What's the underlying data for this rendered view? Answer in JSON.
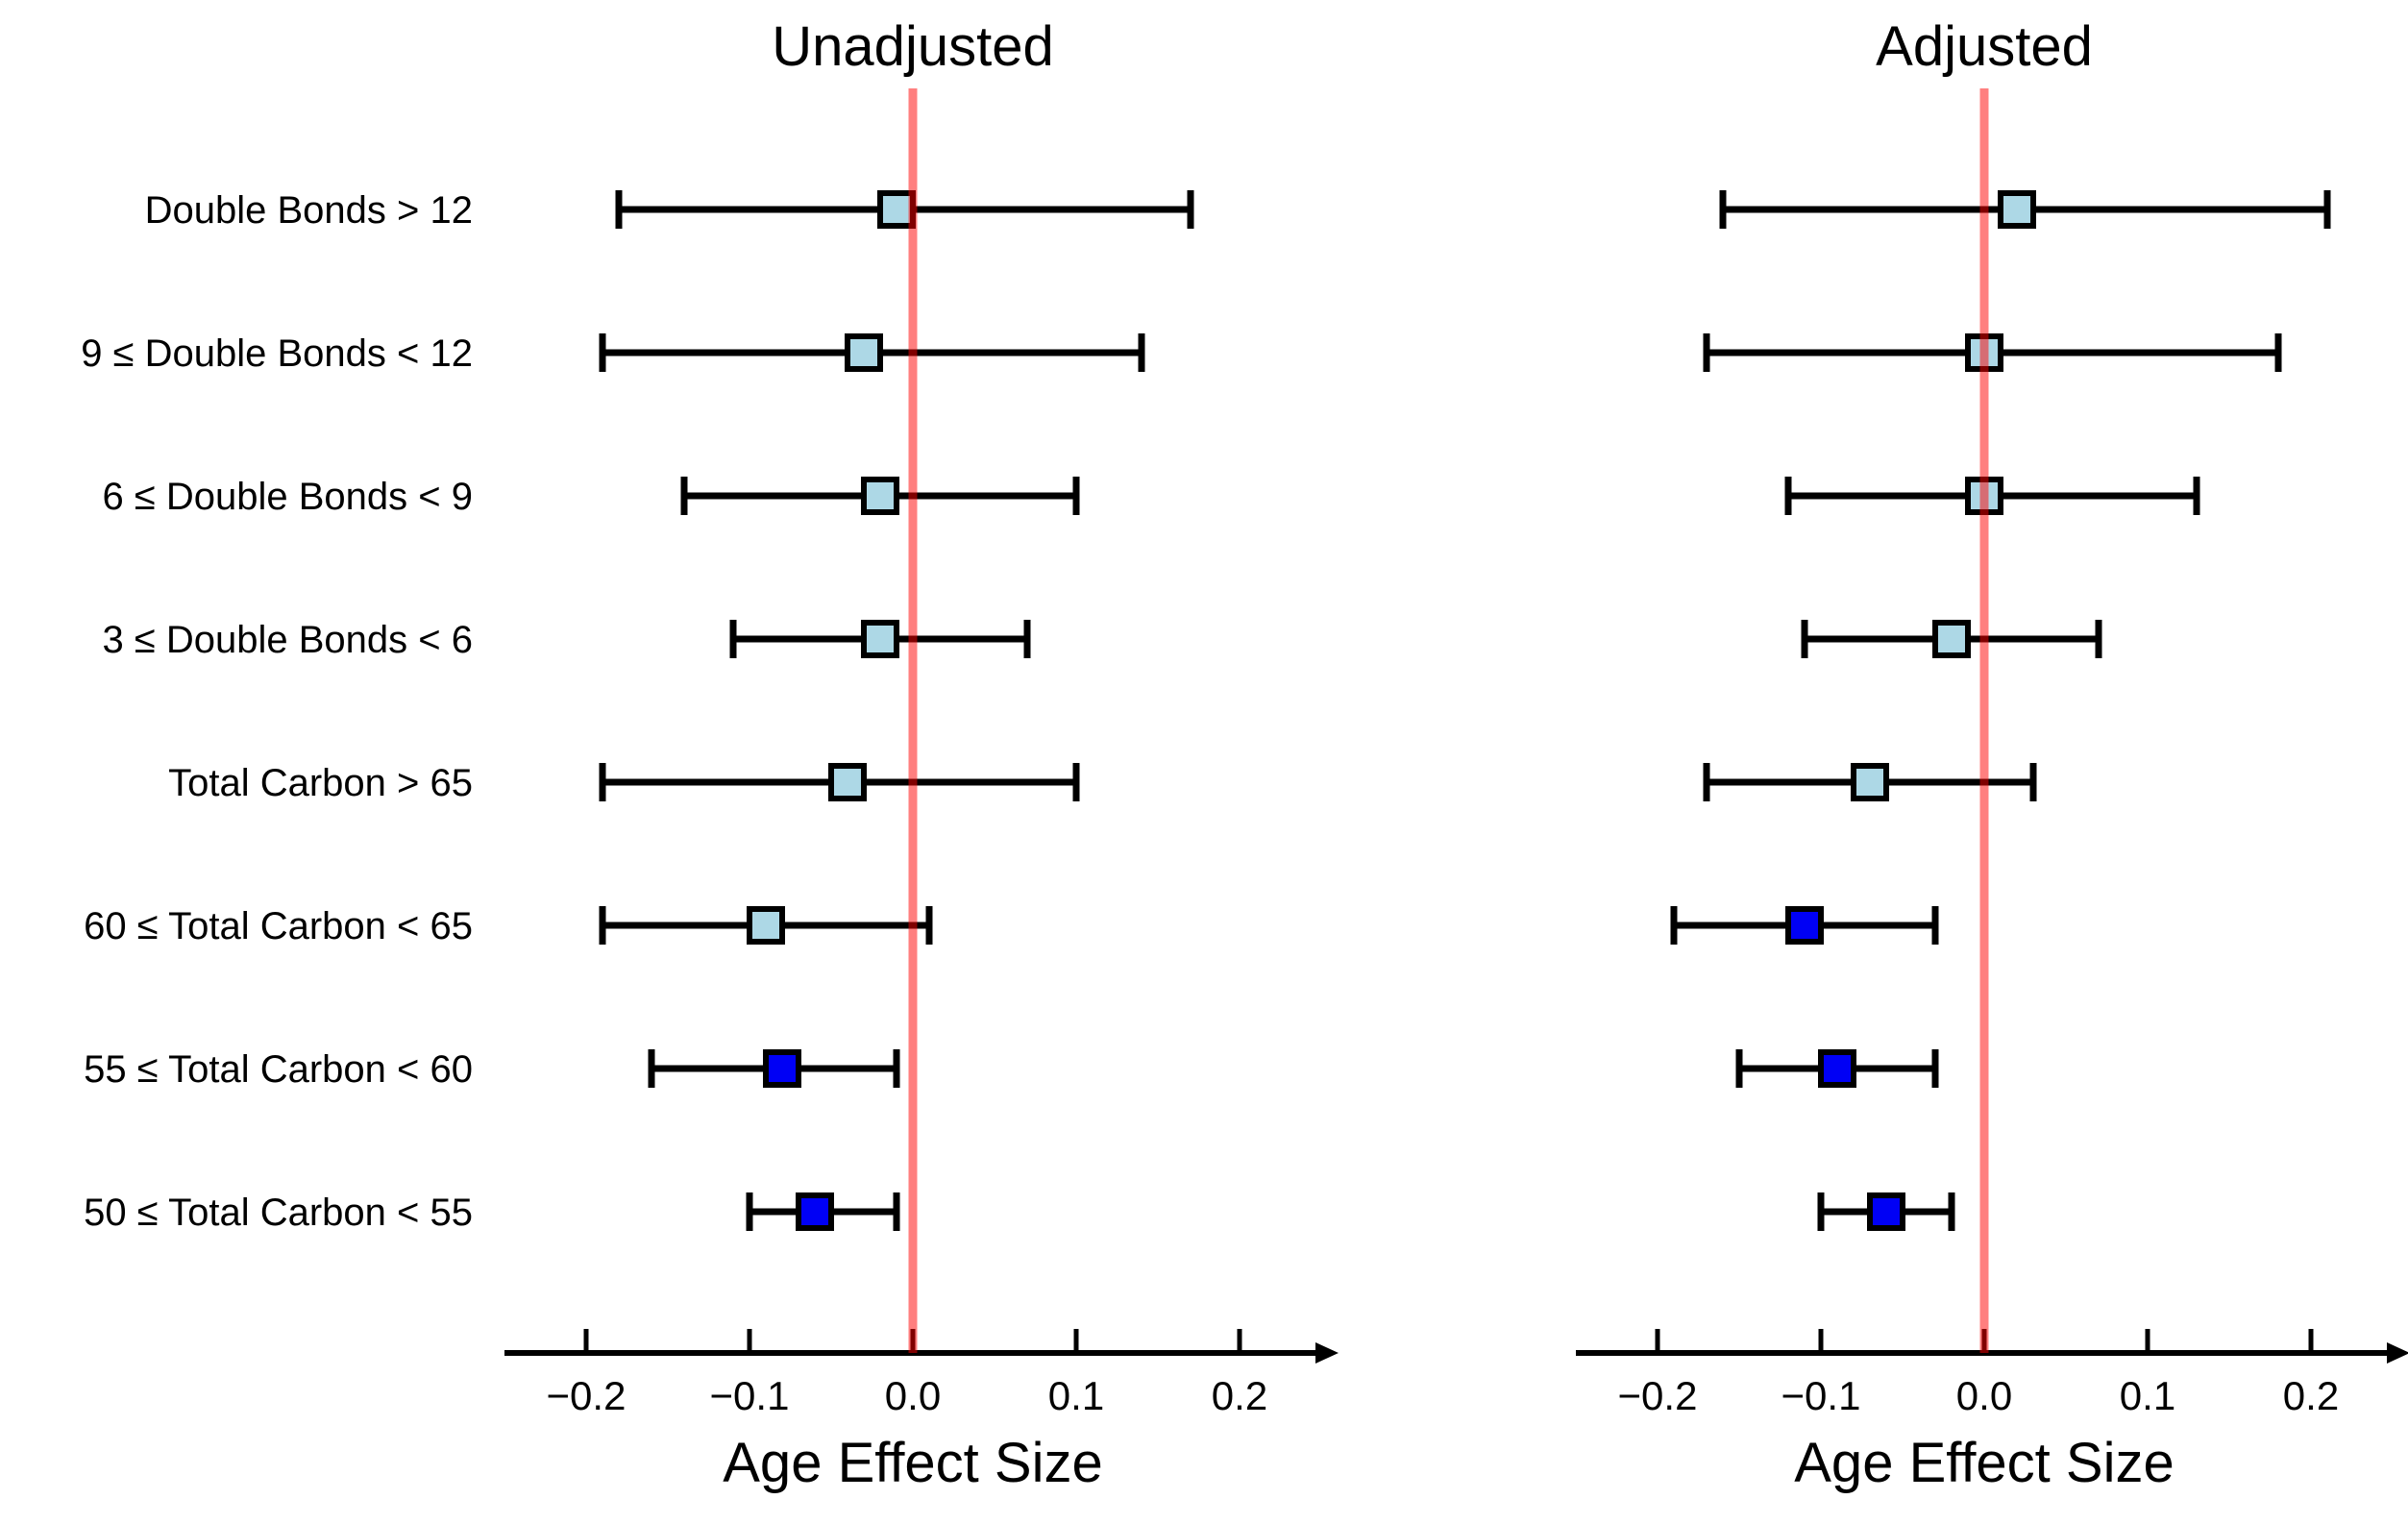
{
  "figure": {
    "background": "#FFFFFF"
  },
  "chart_data": {
    "type": "forest",
    "xlabel": "Age Effect Size",
    "xlim": [
      -0.25,
      0.25
    ],
    "reference_line_x": 0,
    "grid": false,
    "ticks": [
      {
        "value": -0.2,
        "label": "−0.2"
      },
      {
        "value": -0.1,
        "label": "−0.1"
      },
      {
        "value": 0.0,
        "label": "0.0"
      },
      {
        "value": 0.1,
        "label": "0.1"
      },
      {
        "value": 0.2,
        "label": "0.2"
      }
    ],
    "categories": [
      "Double Bonds > 12",
      "9 ≤ Double Bonds < 12",
      "6 ≤ Double Bonds < 9",
      "3 ≤ Double Bonds < 6",
      "Total Carbon > 65",
      "60 ≤ Total Carbon < 65",
      "55 ≤ Total Carbon < 60",
      "50 ≤ Total Carbon < 55"
    ],
    "panels": [
      {
        "title": "Unadjusted",
        "series": [
          {
            "category": "Double Bonds > 12",
            "estimate": -0.01,
            "ci_low": -0.18,
            "ci_high": 0.17,
            "significant": false
          },
          {
            "category": "9 ≤ Double Bonds < 12",
            "estimate": -0.03,
            "ci_low": -0.19,
            "ci_high": 0.14,
            "significant": false
          },
          {
            "category": "6 ≤ Double Bonds < 9",
            "estimate": -0.02,
            "ci_low": -0.14,
            "ci_high": 0.1,
            "significant": false
          },
          {
            "category": "3 ≤ Double Bonds < 6",
            "estimate": -0.02,
            "ci_low": -0.11,
            "ci_high": 0.07,
            "significant": false
          },
          {
            "category": "Total Carbon > 65",
            "estimate": -0.04,
            "ci_low": -0.19,
            "ci_high": 0.1,
            "significant": false
          },
          {
            "category": "60 ≤ Total Carbon < 65",
            "estimate": -0.09,
            "ci_low": -0.19,
            "ci_high": 0.01,
            "significant": false
          },
          {
            "category": "55 ≤ Total Carbon < 60",
            "estimate": -0.08,
            "ci_low": -0.16,
            "ci_high": -0.01,
            "significant": true
          },
          {
            "category": "50 ≤ Total Carbon < 55",
            "estimate": -0.06,
            "ci_low": -0.1,
            "ci_high": -0.01,
            "significant": true
          }
        ]
      },
      {
        "title": "Adjusted",
        "series": [
          {
            "category": "Double Bonds > 12",
            "estimate": 0.02,
            "ci_low": -0.16,
            "ci_high": 0.21,
            "significant": false
          },
          {
            "category": "9 ≤ Double Bonds < 12",
            "estimate": 0.0,
            "ci_low": -0.17,
            "ci_high": 0.18,
            "significant": false
          },
          {
            "category": "6 ≤ Double Bonds < 9",
            "estimate": 0.0,
            "ci_low": -0.12,
            "ci_high": 0.13,
            "significant": false
          },
          {
            "category": "3 ≤ Double Bonds < 6",
            "estimate": -0.02,
            "ci_low": -0.11,
            "ci_high": 0.07,
            "significant": false
          },
          {
            "category": "Total Carbon > 65",
            "estimate": -0.07,
            "ci_low": -0.17,
            "ci_high": 0.03,
            "significant": false
          },
          {
            "category": "60 ≤ Total Carbon < 65",
            "estimate": -0.11,
            "ci_low": -0.19,
            "ci_high": -0.03,
            "significant": true
          },
          {
            "category": "55 ≤ Total Carbon < 60",
            "estimate": -0.09,
            "ci_low": -0.15,
            "ci_high": -0.03,
            "significant": true
          },
          {
            "category": "50 ≤ Total Carbon < 55",
            "estimate": -0.06,
            "ci_low": -0.1,
            "ci_high": -0.02,
            "significant": true
          }
        ]
      }
    ],
    "colors": {
      "significant": "#0000F5",
      "nonsignificant": "#ADD8E6",
      "errorbar": "#000000",
      "reference_line": "#FF0000",
      "reference_line_opacity": 0.5,
      "text": "#000000",
      "background": "#FFFFFF"
    },
    "legend": null
  }
}
